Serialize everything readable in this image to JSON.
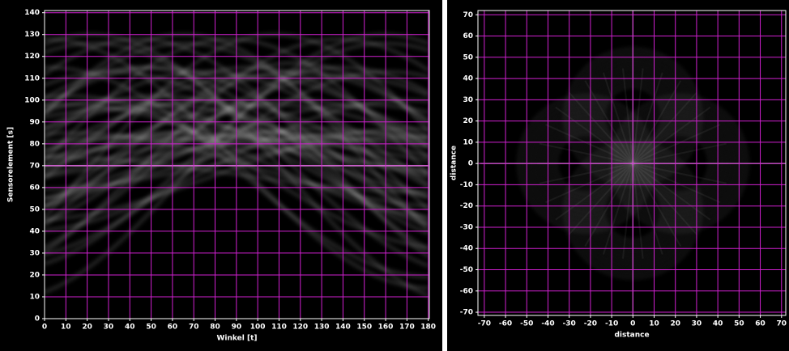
{
  "chart_data": [
    {
      "type": "image",
      "xlabel": "Winkel [t]",
      "ylabel": "Sensorelement [s]",
      "xlim": [
        0,
        180.5
      ],
      "ylim": [
        0,
        141
      ],
      "xticks": [
        0,
        10,
        20,
        30,
        40,
        50,
        60,
        70,
        80,
        90,
        100,
        110,
        120,
        130,
        140,
        150,
        160,
        170,
        180
      ],
      "yticks": [
        0,
        10,
        20,
        30,
        40,
        50,
        60,
        70,
        80,
        90,
        100,
        110,
        120,
        130,
        140
      ],
      "grid": true,
      "grid_color": "#d020d0"
    },
    {
      "type": "image",
      "xlabel": "distance",
      "ylabel": "distance",
      "xlim": [
        -73,
        72
      ],
      "ylim": [
        -71.5,
        72
      ],
      "xticks": [
        -70,
        -60,
        -50,
        -40,
        -30,
        -20,
        -10,
        0,
        10,
        20,
        30,
        40,
        50,
        60,
        70
      ],
      "yticks": [
        -70,
        -60,
        -50,
        -40,
        -30,
        -20,
        -10,
        0,
        10,
        20,
        30,
        40,
        50,
        60,
        70
      ],
      "grid": true,
      "grid_color": "#d020d0"
    }
  ]
}
